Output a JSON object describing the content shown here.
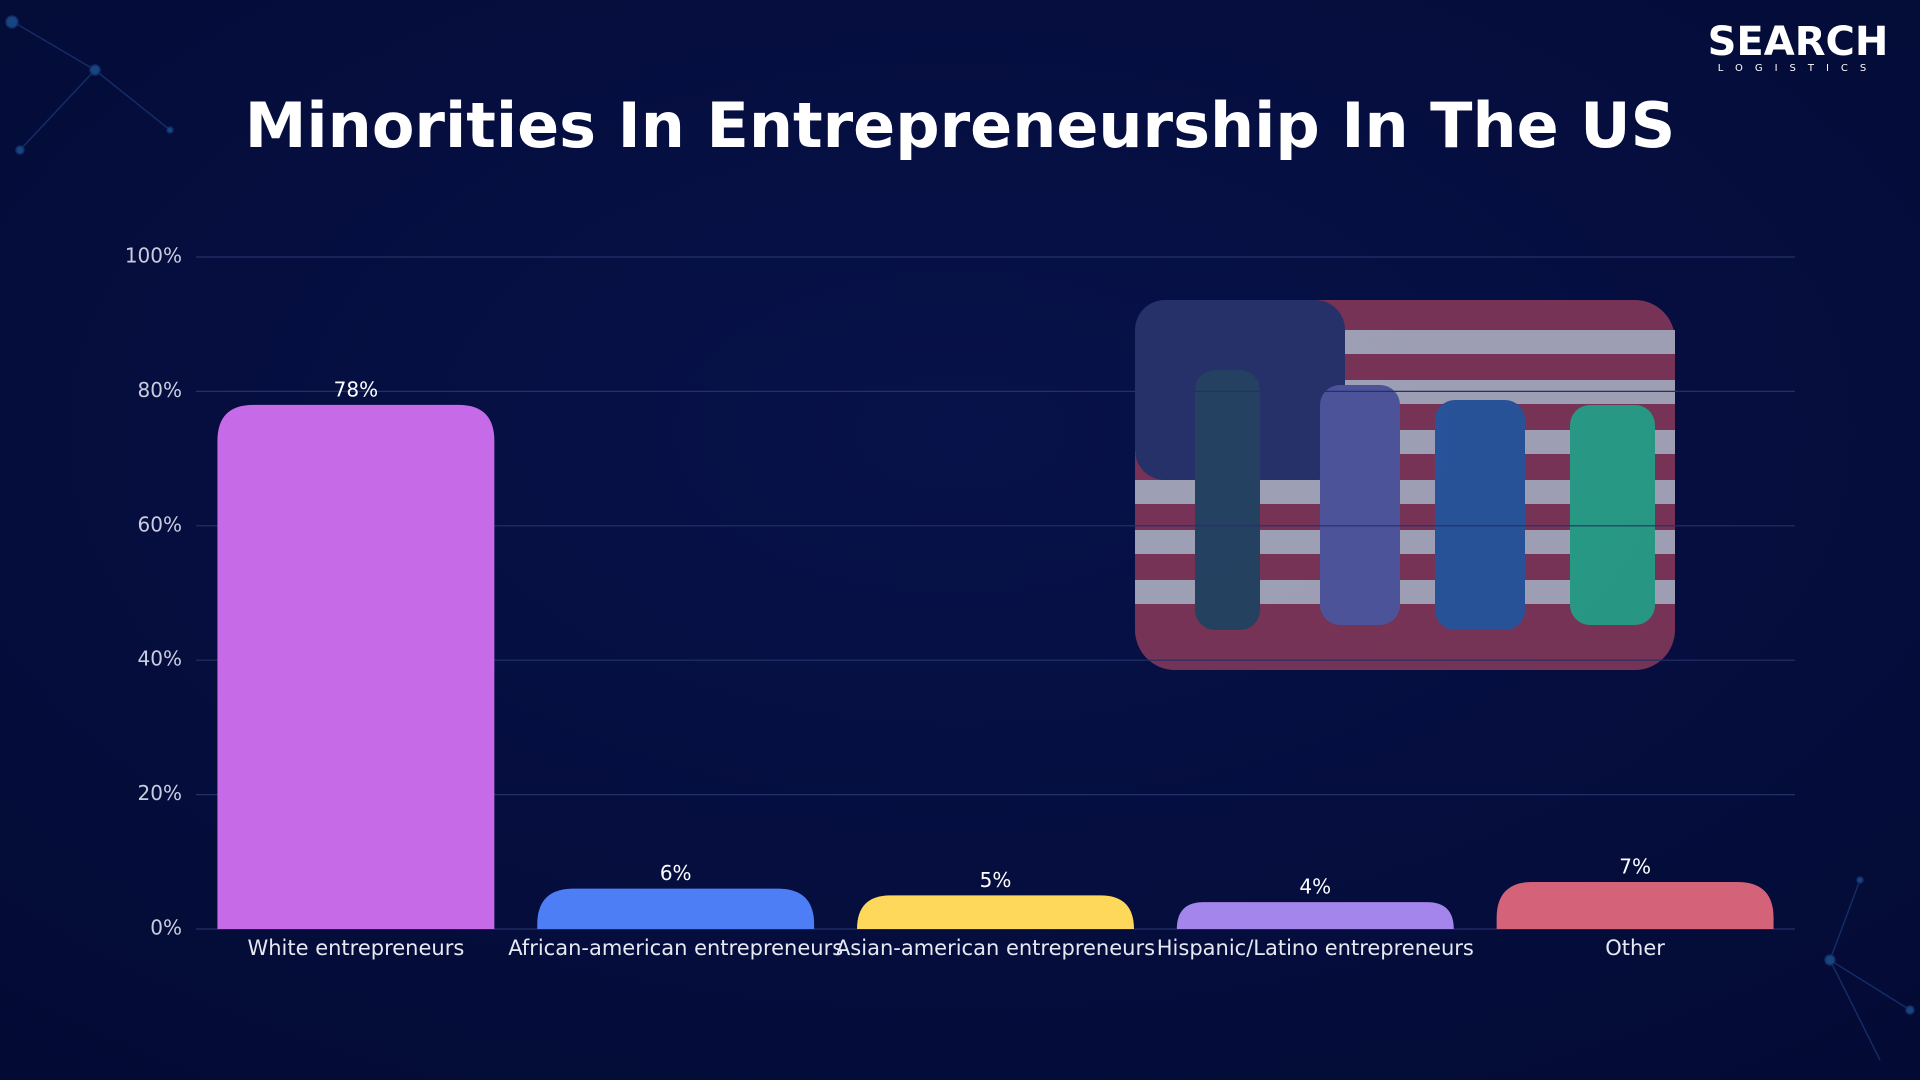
{
  "brand": {
    "name": "SEARCH",
    "tagline": "LOGISTICS"
  },
  "chart_data": {
    "type": "bar",
    "title": "Minorities In Entrepreneurship In The US",
    "categories": [
      "White entrepreneurs",
      "African-american entrepreneurs",
      "Asian-american entrepreneurs",
      "Hispanic/Latino entrepreneurs",
      "Other"
    ],
    "values": [
      78,
      6,
      5,
      4,
      7
    ],
    "value_labels": [
      "78%",
      "6%",
      "5%",
      "4%",
      "7%"
    ],
    "colors": [
      "#c76ae8",
      "#4d7ef5",
      "#fdd85a",
      "#a385ec",
      "#d4637a"
    ],
    "ylim": [
      0,
      100
    ],
    "yticks": [
      {
        "value": 0,
        "label": "0%"
      },
      {
        "value": 20,
        "label": "20%"
      },
      {
        "value": 40,
        "label": "40%"
      },
      {
        "value": 60,
        "label": "60%"
      },
      {
        "value": 80,
        "label": "80%"
      },
      {
        "value": 100,
        "label": "100%"
      }
    ],
    "grid": true
  }
}
